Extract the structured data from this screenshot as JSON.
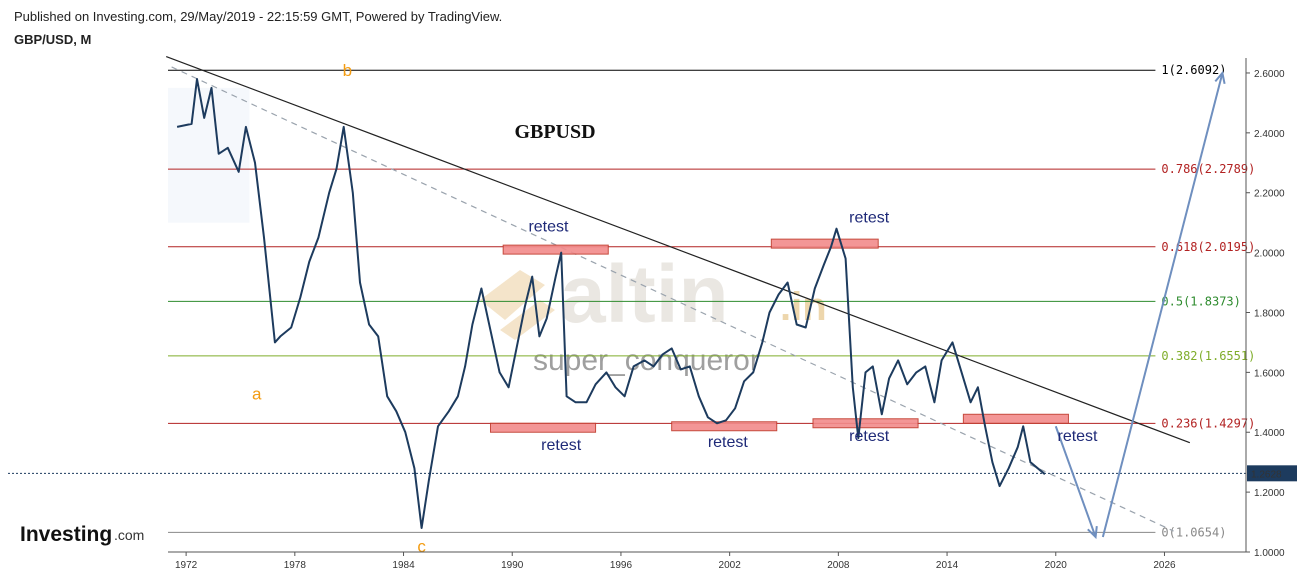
{
  "header": {
    "published": "Published on Investing.com, 29/May/2019 - 22:15:59 GMT, Powered by TradingView.",
    "symbol": "GBP/USD, M"
  },
  "logo": {
    "main": "Investing",
    "suffix": ".com"
  },
  "watermark": {
    "brand": "altin",
    "tld": ".in",
    "author": "super_conqueror"
  },
  "chart_data": {
    "type": "line",
    "title": "GBPUSD",
    "interval": "M",
    "x_ticks": [
      "1972",
      "1978",
      "1984",
      "1990",
      "1996",
      "2002",
      "2008",
      "2014",
      "2020",
      "2026"
    ],
    "y_ticks": [
      "1.0000",
      "1.2000",
      "1.4000",
      "1.6000",
      "1.8000",
      "2.0000",
      "2.2000",
      "2.4000",
      "2.6000"
    ],
    "ylim": [
      1.0,
      2.65
    ],
    "xlim": [
      1971.0,
      2030.5
    ],
    "last_price": "1.2628",
    "last_price_value": 1.2628,
    "colors": {
      "price": "#1d3b5e",
      "accent": "#1d3b5e",
      "zone": "#f28b8b"
    },
    "series": [
      {
        "values": [
          [
            1971.5,
            2.42
          ],
          [
            1972.3,
            2.43
          ],
          [
            1972.6,
            2.58
          ],
          [
            1973.0,
            2.45
          ],
          [
            1973.4,
            2.55
          ],
          [
            1973.8,
            2.33
          ],
          [
            1974.3,
            2.35
          ],
          [
            1974.9,
            2.27
          ],
          [
            1975.3,
            2.42
          ],
          [
            1975.8,
            2.3
          ],
          [
            1976.3,
            2.05
          ],
          [
            1976.9,
            1.7
          ],
          [
            1977.2,
            1.72
          ],
          [
            1977.8,
            1.75
          ],
          [
            1978.3,
            1.85
          ],
          [
            1978.8,
            1.97
          ],
          [
            1979.3,
            2.05
          ],
          [
            1979.9,
            2.2
          ],
          [
            1980.3,
            2.28
          ],
          [
            1980.7,
            2.42
          ],
          [
            1981.2,
            2.2
          ],
          [
            1981.6,
            1.9
          ],
          [
            1982.1,
            1.76
          ],
          [
            1982.6,
            1.72
          ],
          [
            1983.1,
            1.52
          ],
          [
            1983.6,
            1.47
          ],
          [
            1984.1,
            1.4
          ],
          [
            1984.6,
            1.28
          ],
          [
            1985.0,
            1.08
          ],
          [
            1985.4,
            1.24
          ],
          [
            1985.9,
            1.42
          ],
          [
            1986.5,
            1.47
          ],
          [
            1987.0,
            1.52
          ],
          [
            1987.4,
            1.62
          ],
          [
            1987.8,
            1.76
          ],
          [
            1988.3,
            1.88
          ],
          [
            1988.8,
            1.74
          ],
          [
            1989.3,
            1.6
          ],
          [
            1989.8,
            1.55
          ],
          [
            1990.3,
            1.7
          ],
          [
            1990.7,
            1.82
          ],
          [
            1991.1,
            1.92
          ],
          [
            1991.5,
            1.72
          ],
          [
            1991.9,
            1.78
          ],
          [
            1992.4,
            1.92
          ],
          [
            1992.7,
            2.0
          ],
          [
            1993.0,
            1.52
          ],
          [
            1993.5,
            1.5
          ],
          [
            1994.1,
            1.5
          ],
          [
            1994.6,
            1.56
          ],
          [
            1995.2,
            1.6
          ],
          [
            1995.7,
            1.55
          ],
          [
            1996.2,
            1.52
          ],
          [
            1996.7,
            1.62
          ],
          [
            1997.3,
            1.64
          ],
          [
            1997.8,
            1.62
          ],
          [
            1998.3,
            1.66
          ],
          [
            1998.8,
            1.68
          ],
          [
            1999.3,
            1.61
          ],
          [
            1999.8,
            1.62
          ],
          [
            2000.3,
            1.52
          ],
          [
            2000.8,
            1.45
          ],
          [
            2001.3,
            1.43
          ],
          [
            2001.8,
            1.44
          ],
          [
            2002.3,
            1.48
          ],
          [
            2002.8,
            1.57
          ],
          [
            2003.3,
            1.6
          ],
          [
            2003.8,
            1.7
          ],
          [
            2004.2,
            1.8
          ],
          [
            2004.7,
            1.86
          ],
          [
            2005.2,
            1.9
          ],
          [
            2005.7,
            1.76
          ],
          [
            2006.2,
            1.75
          ],
          [
            2006.7,
            1.88
          ],
          [
            2007.2,
            1.96
          ],
          [
            2007.6,
            2.02
          ],
          [
            2007.9,
            2.08
          ],
          [
            2008.4,
            1.98
          ],
          [
            2008.8,
            1.55
          ],
          [
            2009.1,
            1.38
          ],
          [
            2009.5,
            1.6
          ],
          [
            2009.9,
            1.62
          ],
          [
            2010.4,
            1.46
          ],
          [
            2010.8,
            1.58
          ],
          [
            2011.3,
            1.64
          ],
          [
            2011.8,
            1.56
          ],
          [
            2012.3,
            1.6
          ],
          [
            2012.8,
            1.62
          ],
          [
            2013.3,
            1.5
          ],
          [
            2013.7,
            1.64
          ],
          [
            2014.3,
            1.7
          ],
          [
            2014.8,
            1.6
          ],
          [
            2015.3,
            1.5
          ],
          [
            2015.7,
            1.55
          ],
          [
            2016.1,
            1.42
          ],
          [
            2016.5,
            1.3
          ],
          [
            2016.9,
            1.22
          ],
          [
            2017.4,
            1.28
          ],
          [
            2017.9,
            1.35
          ],
          [
            2018.2,
            1.42
          ],
          [
            2018.6,
            1.3
          ],
          [
            2019.0,
            1.28
          ],
          [
            2019.4,
            1.26
          ]
        ]
      }
    ],
    "fib_levels": [
      {
        "label": "1(2.6092)",
        "value": 2.6092,
        "color": "#000000"
      },
      {
        "label": "0.786(2.2789)",
        "value": 2.2789,
        "color": "#b22222"
      },
      {
        "label": "0.618(2.0195)",
        "value": 2.0195,
        "color": "#b22222"
      },
      {
        "label": "0.5(1.8373)",
        "value": 1.8373,
        "color": "#2e8b2e"
      },
      {
        "label": "0.382(1.6551)",
        "value": 1.6551,
        "color": "#7fad2a"
      },
      {
        "label": "0.236(1.4297)",
        "value": 1.4297,
        "color": "#b22222"
      },
      {
        "label": "0(1.0654)",
        "value": 1.0654,
        "color": "#888888"
      }
    ],
    "annotations": [
      {
        "text": "retest",
        "x": 1992.0,
        "y": 2.07
      },
      {
        "text": "retest",
        "x": 2009.7,
        "y": 2.1
      },
      {
        "text": "retest",
        "x": 1992.7,
        "y": 1.34
      },
      {
        "text": "retest",
        "x": 2001.9,
        "y": 1.35
      },
      {
        "text": "retest",
        "x": 2009.7,
        "y": 1.37
      },
      {
        "text": "retest",
        "x": 2021.2,
        "y": 1.37
      }
    ],
    "zones": [
      {
        "x": [
          1989.5,
          1995.3
        ],
        "y": [
          2.025,
          1.995
        ]
      },
      {
        "x": [
          2004.3,
          2010.2
        ],
        "y": [
          2.045,
          2.015
        ]
      },
      {
        "x": [
          1988.8,
          1994.6
        ],
        "y": [
          1.43,
          1.4
        ]
      },
      {
        "x": [
          1998.8,
          2004.6
        ],
        "y": [
          1.435,
          1.405
        ]
      },
      {
        "x": [
          2006.6,
          2012.4
        ],
        "y": [
          1.445,
          1.415
        ]
      },
      {
        "x": [
          2014.9,
          2020.7
        ],
        "y": [
          1.46,
          1.43
        ]
      }
    ],
    "wave_labels": [
      {
        "text": "a",
        "x": 1975.9,
        "y": 1.51
      },
      {
        "text": "b",
        "x": 1980.9,
        "y": 2.59
      },
      {
        "text": "c",
        "x": 1985.0,
        "y": 1.0
      }
    ],
    "trendlines": [
      {
        "from": [
          1970.9,
          2.655
        ],
        "to": [
          2027.4,
          1.365
        ],
        "color": "#222222",
        "dashed": false
      },
      {
        "from": [
          1971.2,
          2.62
        ],
        "to": [
          2026.5,
          1.07
        ],
        "color": "#9aa3ad",
        "dashed": true
      }
    ],
    "arrows": [
      {
        "from": [
          2020.0,
          1.42
        ],
        "to": [
          2022.2,
          1.05
        ]
      },
      {
        "from": [
          2022.6,
          1.05
        ],
        "to": [
          2029.2,
          2.6
        ]
      }
    ]
  }
}
